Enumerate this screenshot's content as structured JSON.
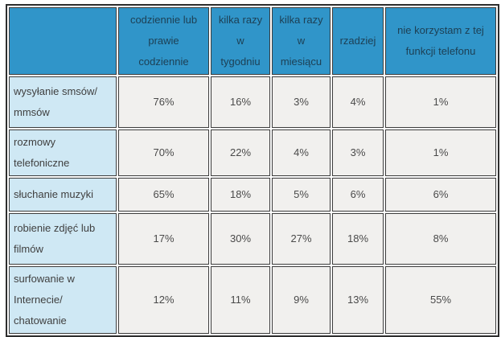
{
  "colors": {
    "header_bg": "#3095c9",
    "header_text": "#1d4055",
    "label_column_bg": "#cfe8f4",
    "data_cell_bg": "#f1f0ee",
    "data_text": "#4a4a4a",
    "border": "#3c3c3c"
  },
  "table": {
    "header": {
      "corner": "",
      "cols": [
        "codziennie lub prawie codziennie",
        "kilka razy w tygodniu",
        "kilka razy w miesiącu",
        "rzadziej",
        "nie korzystam z tej funkcji telefonu"
      ]
    },
    "rows": [
      {
        "label": "wysyłanie smsów/ mmsów",
        "values": [
          "76%",
          "16%",
          "3%",
          "4%",
          "1%"
        ]
      },
      {
        "label": "rozmowy telefoniczne",
        "values": [
          "70%",
          "22%",
          "4%",
          "3%",
          "1%"
        ]
      },
      {
        "label": "słuchanie muzyki",
        "values": [
          "65%",
          "18%",
          "5%",
          "6%",
          "6%"
        ]
      },
      {
        "label": "robienie zdjęć lub filmów",
        "values": [
          "17%",
          "30%",
          "27%",
          "18%",
          "8%"
        ]
      },
      {
        "label": "surfowanie w Internecie/ chatowanie",
        "values": [
          "12%",
          "11%",
          "9%",
          "13%",
          "55%"
        ]
      }
    ]
  },
  "chart_data": {
    "type": "table",
    "title": "",
    "columns": [
      "codziennie lub prawie codziennie",
      "kilka razy w tygodniu",
      "kilka razy w miesiącu",
      "rzadziej",
      "nie korzystam z tej funkcji telefonu"
    ],
    "categories": [
      "wysyłanie smsów/ mmsów",
      "rozmowy telefoniczne",
      "słuchanie muzyki",
      "robienie zdjęć lub filmów",
      "surfowanie w Internecie/ chatowanie"
    ],
    "series": [
      {
        "name": "codziennie lub prawie codziennie",
        "values": [
          76,
          70,
          65,
          17,
          12
        ]
      },
      {
        "name": "kilka razy w tygodniu",
        "values": [
          16,
          22,
          18,
          30,
          11
        ]
      },
      {
        "name": "kilka razy w miesiącu",
        "values": [
          3,
          4,
          5,
          27,
          9
        ]
      },
      {
        "name": "rzadziej",
        "values": [
          4,
          3,
          6,
          18,
          13
        ]
      },
      {
        "name": "nie korzystam z tej funkcji telefonu",
        "values": [
          1,
          1,
          6,
          8,
          55
        ]
      }
    ],
    "unit": "%"
  }
}
